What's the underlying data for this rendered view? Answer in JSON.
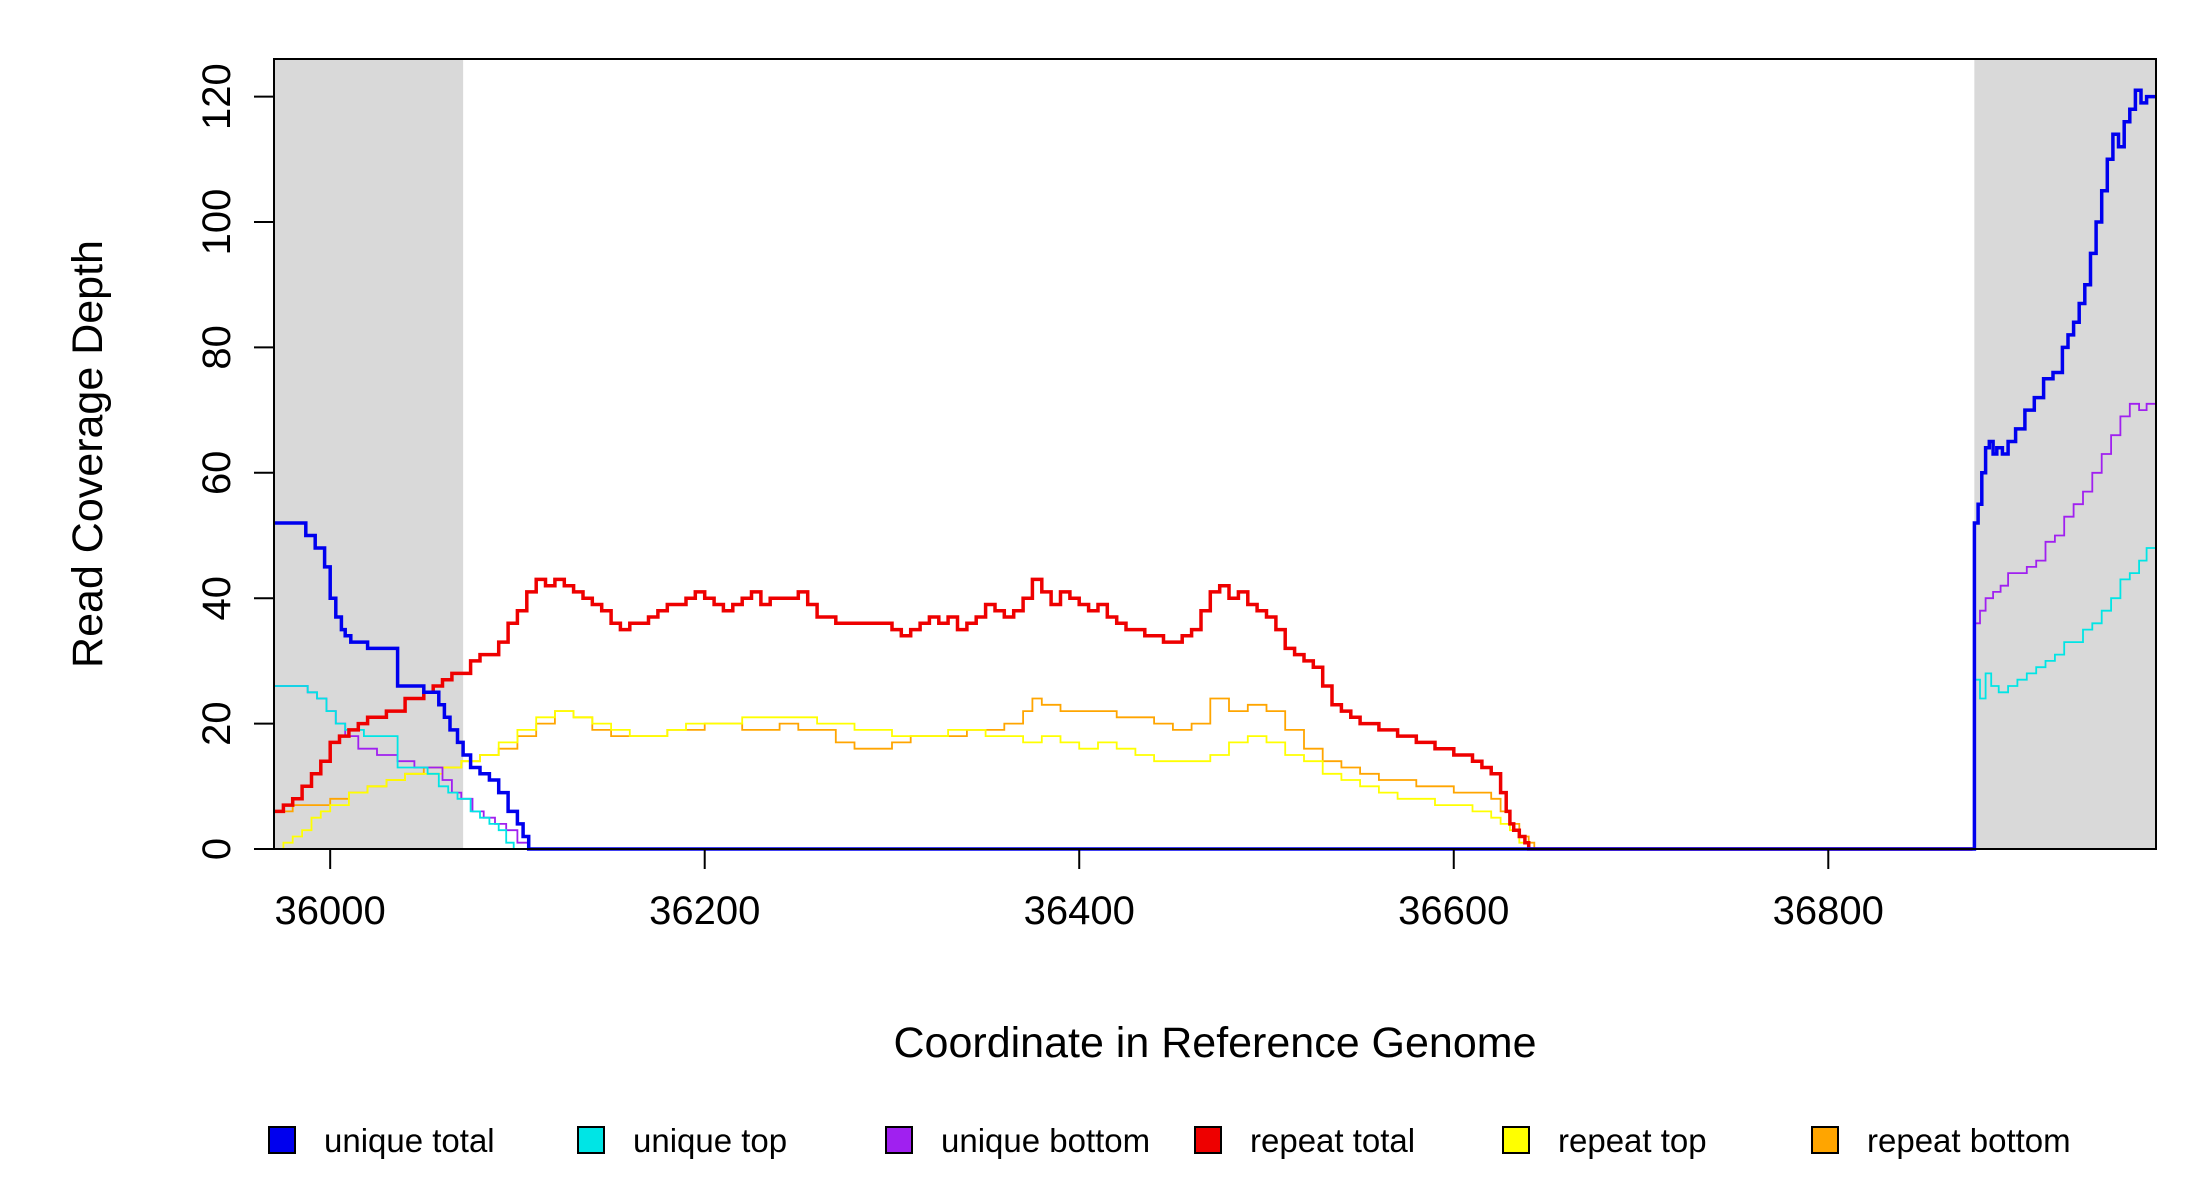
{
  "chart_data": {
    "type": "line",
    "title": "",
    "xlabel": "Coordinate in Reference Genome",
    "ylabel": "Read Coverage Depth",
    "xlim": [
      35970,
      36975
    ],
    "ylim": [
      0,
      126
    ],
    "x_ticks": [
      36000,
      36200,
      36400,
      36600,
      36800
    ],
    "x_tick_labels": [
      "36000",
      "36200",
      "36400",
      "36600",
      "36800"
    ],
    "y_ticks": [
      0,
      20,
      40,
      60,
      80,
      100,
      120
    ],
    "y_tick_labels": [
      "0",
      "20",
      "40",
      "60",
      "80",
      "100",
      "120"
    ],
    "grid": false,
    "legend_position": "bottom",
    "shaded_regions": [
      {
        "x0": 35970,
        "x1": 36071,
        "color": "#d9d9d9"
      },
      {
        "x0": 36878,
        "x1": 36975,
        "color": "#d9d9d9"
      }
    ],
    "series": [
      {
        "name": "unique total",
        "color": "#0000ee",
        "x": [
          35970,
          35983,
          35987,
          35992,
          35997,
          36000,
          36003,
          36006,
          36008,
          36011,
          36015,
          36020,
          36030,
          36036,
          36040,
          36045,
          36050,
          36055,
          36058,
          36061,
          36064,
          36068,
          36071,
          36075,
          36080,
          36085,
          36090,
          36095,
          36100,
          36103,
          36106,
          36600,
          36877,
          36878,
          36880,
          36882,
          36884,
          36886,
          36888,
          36890,
          36893,
          36896,
          36900,
          36905,
          36910,
          36915,
          36920,
          36925,
          36928,
          36931,
          36934,
          36937,
          36940,
          36943,
          36946,
          36949,
          36952,
          36955,
          36958,
          36961,
          36964,
          36967,
          36970,
          36975
        ],
        "y": [
          52,
          52,
          50,
          48,
          45,
          40,
          37,
          35,
          34,
          33,
          33,
          32,
          32,
          26,
          26,
          26,
          25,
          25,
          23,
          21,
          19,
          17,
          15,
          13,
          12,
          11,
          9,
          6,
          4,
          2,
          0,
          0,
          0,
          52,
          55,
          60,
          64,
          65,
          63,
          64,
          63,
          65,
          67,
          70,
          72,
          75,
          76,
          80,
          82,
          84,
          87,
          90,
          95,
          100,
          105,
          110,
          114,
          112,
          116,
          118,
          121,
          119,
          120,
          120
        ]
      },
      {
        "name": "unique top",
        "color": "#00e5e5",
        "x": [
          35970,
          35983,
          35988,
          35993,
          35998,
          36003,
          36008,
          36013,
          36018,
          36023,
          36028,
          36036,
          36045,
          36052,
          36058,
          36063,
          36068,
          36075,
          36080,
          36085,
          36090,
          36094,
          36098,
          36102,
          36106,
          36600,
          36877,
          36878,
          36881,
          36884,
          36887,
          36891,
          36896,
          36901,
          36906,
          36911,
          36916,
          36921,
          36926,
          36931,
          36936,
          36941,
          36946,
          36951,
          36956,
          36961,
          36966,
          36970,
          36975
        ],
        "y": [
          26,
          26,
          25,
          24,
          22,
          20,
          19,
          19,
          18,
          18,
          18,
          13,
          13,
          12,
          10,
          9,
          8,
          6,
          5,
          4,
          3,
          1,
          0,
          0,
          0,
          0,
          0,
          27,
          24,
          28,
          26,
          25,
          26,
          27,
          28,
          29,
          30,
          31,
          33,
          33,
          35,
          36,
          38,
          40,
          43,
          44,
          46,
          48,
          48
        ]
      },
      {
        "name": "unique bottom",
        "color": "#a020f0",
        "x": [
          35970,
          35983,
          35988,
          35993,
          35998,
          36003,
          36008,
          36015,
          36025,
          36036,
          36045,
          36055,
          36060,
          36065,
          36070,
          36076,
          36082,
          36088,
          36094,
          36100,
          36106,
          36600,
          36877,
          36878,
          36881,
          36884,
          36888,
          36892,
          36896,
          36901,
          36906,
          36911,
          36916,
          36921,
          36926,
          36931,
          36936,
          36941,
          36946,
          36951,
          36956,
          36961,
          36966,
          36970,
          36975
        ],
        "y": [
          26,
          26,
          25,
          24,
          22,
          20,
          18,
          16,
          15,
          14,
          13,
          13,
          11,
          9,
          8,
          6,
          5,
          4,
          3,
          1,
          0,
          0,
          0,
          36,
          38,
          40,
          41,
          42,
          44,
          44,
          45,
          46,
          49,
          50,
          53,
          55,
          57,
          60,
          63,
          66,
          69,
          71,
          70,
          71,
          71
        ]
      },
      {
        "name": "repeat total",
        "color": "#ee0000",
        "x": [
          35970,
          35975,
          35980,
          35985,
          35990,
          35995,
          36000,
          36005,
          36010,
          36015,
          36020,
          36030,
          36040,
          36050,
          36055,
          36060,
          36065,
          36070,
          36075,
          36080,
          36090,
          36095,
          36100,
          36105,
          36110,
          36115,
          36120,
          36125,
          36130,
          36135,
          36140,
          36145,
          36150,
          36155,
          36160,
          36165,
          36170,
          36175,
          36180,
          36185,
          36190,
          36195,
          36200,
          36205,
          36210,
          36215,
          36220,
          36225,
          36230,
          36235,
          36240,
          36245,
          36250,
          36255,
          36260,
          36265,
          36270,
          36280,
          36290,
          36300,
          36305,
          36310,
          36315,
          36320,
          36325,
          36330,
          36335,
          36340,
          36345,
          36350,
          36355,
          36360,
          36365,
          36370,
          36375,
          36380,
          36385,
          36390,
          36395,
          36400,
          36405,
          36410,
          36415,
          36420,
          36425,
          36430,
          36435,
          36440,
          36445,
          36450,
          36455,
          36460,
          36465,
          36470,
          36475,
          36480,
          36485,
          36490,
          36495,
          36500,
          36505,
          36510,
          36515,
          36520,
          36525,
          36530,
          36535,
          36540,
          36545,
          36550,
          36560,
          36570,
          36580,
          36590,
          36600,
          36610,
          36615,
          36620,
          36625,
          36628,
          36630,
          36632,
          36635,
          36638,
          36640,
          36642,
          36877
        ],
        "y": [
          6,
          7,
          8,
          10,
          12,
          14,
          17,
          18,
          19,
          20,
          21,
          22,
          24,
          25,
          26,
          27,
          28,
          28,
          30,
          31,
          33,
          36,
          38,
          41,
          43,
          42,
          43,
          42,
          41,
          40,
          39,
          38,
          36,
          35,
          36,
          36,
          37,
          38,
          39,
          39,
          40,
          41,
          40,
          39,
          38,
          39,
          40,
          41,
          39,
          40,
          40,
          40,
          41,
          39,
          37,
          37,
          36,
          36,
          36,
          35,
          34,
          35,
          36,
          37,
          36,
          37,
          35,
          36,
          37,
          39,
          38,
          37,
          38,
          40,
          43,
          41,
          39,
          41,
          40,
          39,
          38,
          39,
          37,
          36,
          35,
          35,
          34,
          34,
          33,
          33,
          34,
          35,
          38,
          41,
          42,
          40,
          41,
          39,
          38,
          37,
          35,
          32,
          31,
          30,
          29,
          26,
          23,
          22,
          21,
          20,
          19,
          18,
          17,
          16,
          15,
          14,
          13,
          12,
          9,
          6,
          4,
          3,
          2,
          1,
          0,
          0,
          0
        ]
      },
      {
        "name": "repeat top",
        "color": "#ffff00",
        "x": [
          35970,
          35975,
          35980,
          35985,
          35990,
          35995,
          36000,
          36010,
          36020,
          36030,
          36040,
          36050,
          36060,
          36070,
          36080,
          36090,
          36100,
          36110,
          36120,
          36130,
          36140,
          36150,
          36160,
          36170,
          36180,
          36190,
          36200,
          36210,
          36220,
          36230,
          36240,
          36250,
          36260,
          36270,
          36280,
          36290,
          36300,
          36310,
          36320,
          36330,
          36340,
          36350,
          36360,
          36370,
          36380,
          36390,
          36400,
          36410,
          36420,
          36430,
          36440,
          36450,
          36460,
          36470,
          36480,
          36490,
          36500,
          36510,
          36520,
          36530,
          36540,
          36550,
          36560,
          36570,
          36580,
          36590,
          36600,
          36610,
          36620,
          36625,
          36630,
          36635,
          36640,
          36877
        ],
        "y": [
          0,
          1,
          2,
          3,
          5,
          6,
          7,
          9,
          10,
          11,
          12,
          12,
          13,
          14,
          15,
          17,
          19,
          21,
          22,
          21,
          20,
          19,
          18,
          18,
          19,
          20,
          20,
          20,
          21,
          21,
          21,
          21,
          20,
          20,
          19,
          19,
          18,
          18,
          18,
          19,
          19,
          18,
          18,
          17,
          18,
          17,
          16,
          17,
          16,
          15,
          14,
          14,
          14,
          15,
          17,
          18,
          17,
          15,
          14,
          12,
          11,
          10,
          9,
          8,
          8,
          7,
          7,
          6,
          5,
          4,
          3,
          1,
          0,
          0
        ]
      },
      {
        "name": "repeat bottom",
        "color": "#ffa500",
        "x": [
          35970,
          35975,
          35980,
          35990,
          36000,
          36010,
          36020,
          36030,
          36040,
          36050,
          36060,
          36070,
          36080,
          36090,
          36100,
          36110,
          36120,
          36130,
          36140,
          36150,
          36160,
          36170,
          36180,
          36190,
          36200,
          36210,
          36220,
          36230,
          36240,
          36250,
          36260,
          36270,
          36280,
          36290,
          36300,
          36310,
          36320,
          36330,
          36340,
          36350,
          36360,
          36370,
          36375,
          36380,
          36390,
          36400,
          36410,
          36420,
          36430,
          36440,
          36450,
          36460,
          36470,
          36480,
          36490,
          36500,
          36510,
          36520,
          36530,
          36540,
          36550,
          36560,
          36570,
          36580,
          36590,
          36600,
          36610,
          36620,
          36625,
          36630,
          36635,
          36640,
          36643,
          36975
        ],
        "y": [
          6,
          6,
          7,
          7,
          8,
          9,
          10,
          11,
          12,
          13,
          13,
          14,
          15,
          16,
          18,
          20,
          22,
          21,
          19,
          18,
          18,
          18,
          19,
          19,
          20,
          20,
          19,
          19,
          20,
          19,
          19,
          17,
          16,
          16,
          17,
          18,
          18,
          18,
          19,
          19,
          20,
          22,
          24,
          23,
          22,
          22,
          22,
          21,
          21,
          20,
          19,
          20,
          24,
          22,
          23,
          22,
          19,
          16,
          14,
          13,
          12,
          11,
          11,
          10,
          10,
          9,
          9,
          8,
          6,
          4,
          2,
          1,
          0,
          0
        ]
      }
    ]
  }
}
